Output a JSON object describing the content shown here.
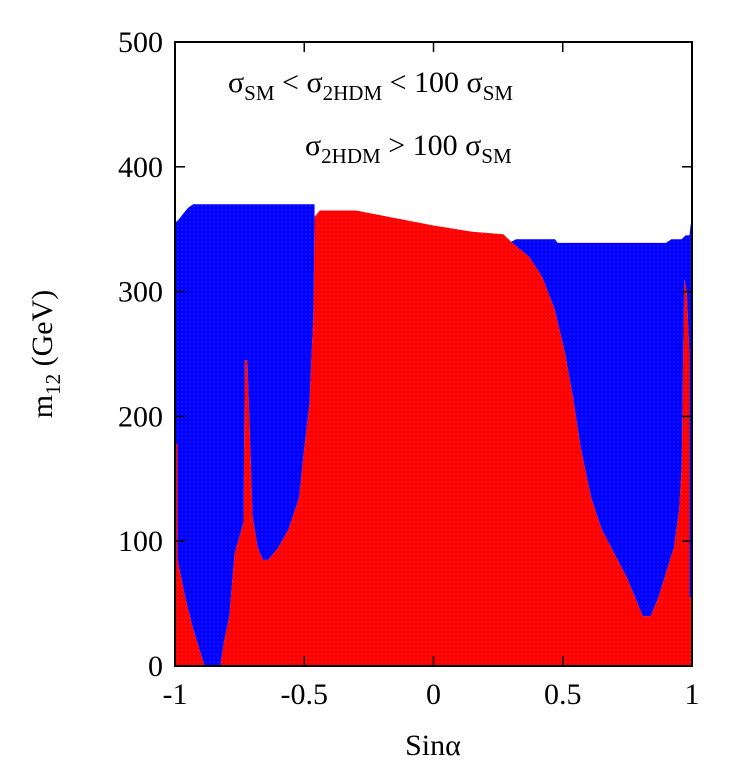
{
  "chart_data": {
    "type": "area",
    "xlabel": {
      "main": "Sin",
      "greek": "α"
    },
    "ylabel": {
      "main": "m",
      "sub": "12",
      "rest": " (GeV)"
    },
    "xlim": [
      -1,
      1
    ],
    "ylim": [
      0,
      500
    ],
    "x_ticks": [
      "-1",
      "-0.5",
      "0",
      "0.5",
      "1"
    ],
    "y_ticks": [
      "0",
      "100",
      "200",
      "300",
      "400",
      "500"
    ],
    "x_tick_values": [
      -1,
      -0.5,
      0,
      0.5,
      1
    ],
    "y_tick_values": [
      0,
      100,
      200,
      300,
      400,
      500
    ],
    "colors": {
      "red": "#ff0000",
      "blue": "#0000ff",
      "frame": "#000000"
    },
    "legend": [
      {
        "color": "#ff0000",
        "parts": [
          "σ",
          "SM",
          " < σ",
          "2HDM",
          " < 100 σ",
          "SM"
        ]
      },
      {
        "color": "#0000ff",
        "parts": [
          "σ",
          "2HDM",
          " > 100 σ",
          "SM"
        ]
      }
    ],
    "regions": [
      {
        "name": "σSM < σ2HDM < 100 σSM",
        "color": "#ff0000",
        "outline": [
          [
            -1.0,
            0
          ],
          [
            -1.0,
            178
          ],
          [
            -0.99,
            178
          ],
          [
            -0.99,
            85
          ],
          [
            -0.96,
            55
          ],
          [
            -0.93,
            30
          ],
          [
            -0.9,
            10
          ],
          [
            -0.885,
            0
          ],
          [
            -0.825,
            0
          ],
          [
            -0.81,
            20
          ],
          [
            -0.79,
            40
          ],
          [
            -0.77,
            90
          ],
          [
            -0.735,
            115
          ],
          [
            -0.73,
            245
          ],
          [
            -0.72,
            245
          ],
          [
            -0.7,
            120
          ],
          [
            -0.68,
            95
          ],
          [
            -0.66,
            85
          ],
          [
            -0.64,
            85
          ],
          [
            -0.6,
            95
          ],
          [
            -0.56,
            110
          ],
          [
            -0.52,
            135
          ],
          [
            -0.5,
            175
          ],
          [
            -0.48,
            210
          ],
          [
            -0.465,
            280
          ],
          [
            -0.46,
            360
          ],
          [
            -0.44,
            365
          ],
          [
            -0.3,
            365
          ],
          [
            0.0,
            353
          ],
          [
            0.15,
            348
          ],
          [
            0.27,
            346
          ],
          [
            0.3,
            340
          ],
          [
            0.37,
            328
          ],
          [
            0.42,
            312
          ],
          [
            0.47,
            285
          ],
          [
            0.51,
            250
          ],
          [
            0.54,
            215
          ],
          [
            0.57,
            175
          ],
          [
            0.61,
            135
          ],
          [
            0.65,
            110
          ],
          [
            0.7,
            90
          ],
          [
            0.75,
            70
          ],
          [
            0.79,
            50
          ],
          [
            0.81,
            40
          ],
          [
            0.84,
            40
          ],
          [
            0.87,
            55
          ],
          [
            0.9,
            75
          ],
          [
            0.93,
            95
          ],
          [
            0.95,
            125
          ],
          [
            0.96,
            160
          ],
          [
            0.97,
            310
          ],
          [
            0.98,
            300
          ],
          [
            0.99,
            250
          ],
          [
            0.99,
            55
          ],
          [
            1.0,
            55
          ],
          [
            1.0,
            0
          ]
        ]
      },
      {
        "name": "σ2HDM > 100 σSM",
        "color": "#0000ff",
        "outline": [
          [
            -1.0,
            178
          ],
          [
            -1.0,
            355
          ],
          [
            -0.985,
            358
          ],
          [
            -0.97,
            362
          ],
          [
            -0.95,
            367
          ],
          [
            -0.93,
            370
          ],
          [
            -0.9,
            370
          ],
          [
            -0.6,
            370
          ],
          [
            -0.46,
            370
          ],
          [
            -0.46,
            360
          ],
          [
            -0.465,
            280
          ],
          [
            -0.48,
            210
          ],
          [
            -0.5,
            175
          ],
          [
            -0.52,
            135
          ],
          [
            -0.56,
            110
          ],
          [
            -0.6,
            95
          ],
          [
            -0.64,
            85
          ],
          [
            -0.66,
            85
          ],
          [
            -0.68,
            95
          ],
          [
            -0.7,
            120
          ],
          [
            -0.72,
            245
          ],
          [
            -0.73,
            245
          ],
          [
            -0.735,
            115
          ],
          [
            -0.77,
            90
          ],
          [
            -0.79,
            40
          ],
          [
            -0.81,
            20
          ],
          [
            -0.825,
            0
          ],
          [
            -0.885,
            0
          ],
          [
            -0.9,
            10
          ],
          [
            -0.93,
            30
          ],
          [
            -0.96,
            55
          ],
          [
            -0.99,
            85
          ],
          [
            -0.99,
            178
          ]
        ]
      },
      {
        "name": "σ2HDM > 100 σSM",
        "color": "#0000ff",
        "outline": [
          [
            0.3,
            340
          ],
          [
            0.32,
            342
          ],
          [
            0.47,
            342
          ],
          [
            0.48,
            339
          ],
          [
            0.6,
            339
          ],
          [
            0.9,
            339
          ],
          [
            0.92,
            342
          ],
          [
            0.96,
            342
          ],
          [
            0.975,
            345
          ],
          [
            0.99,
            345
          ],
          [
            0.995,
            354
          ],
          [
            1.0,
            354
          ],
          [
            1.0,
            55
          ],
          [
            0.99,
            55
          ],
          [
            0.99,
            250
          ],
          [
            0.98,
            300
          ],
          [
            0.97,
            310
          ],
          [
            0.96,
            160
          ],
          [
            0.95,
            125
          ],
          [
            0.93,
            95
          ],
          [
            0.9,
            75
          ],
          [
            0.87,
            55
          ],
          [
            0.84,
            40
          ],
          [
            0.81,
            40
          ],
          [
            0.79,
            50
          ],
          [
            0.75,
            70
          ],
          [
            0.7,
            90
          ],
          [
            0.65,
            110
          ],
          [
            0.61,
            135
          ],
          [
            0.57,
            175
          ],
          [
            0.54,
            215
          ],
          [
            0.51,
            250
          ],
          [
            0.47,
            285
          ],
          [
            0.42,
            312
          ],
          [
            0.37,
            328
          ],
          [
            0.3,
            340
          ]
        ]
      }
    ]
  }
}
